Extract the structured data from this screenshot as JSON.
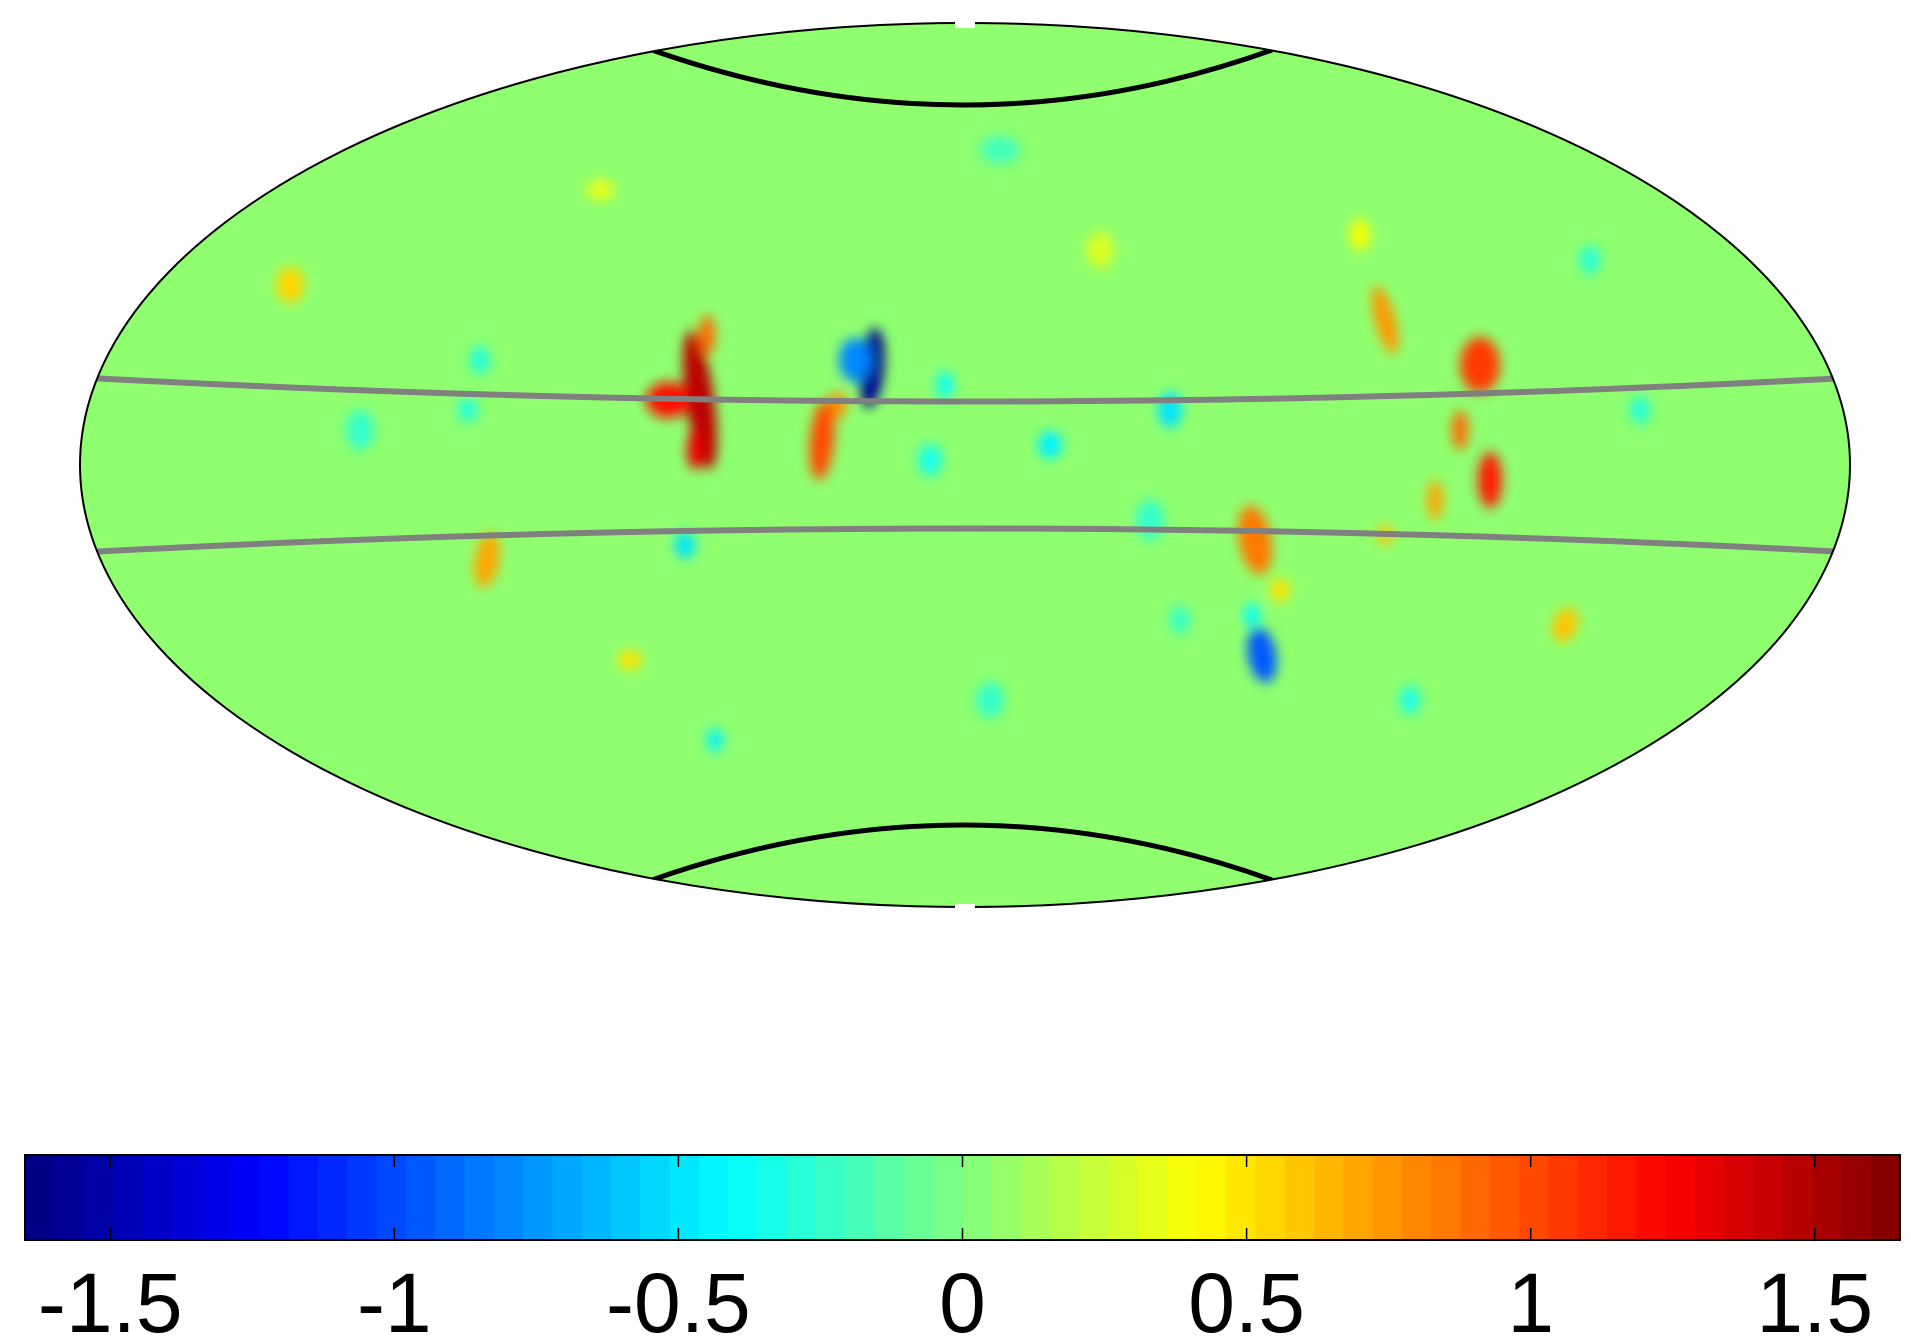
{
  "chart_data": {
    "type": "heatmap",
    "projection": "Hammer-Aitoff all-sky (Mollweide-like ellipse)",
    "title": "",
    "colormap": "jet",
    "colorbar": {
      "orientation": "horizontal",
      "position": "bottom",
      "min": -1.65,
      "max": 1.65,
      "ticks": [
        -1.5,
        -1,
        -0.5,
        0,
        0.5,
        1,
        1.5
      ],
      "tick_labels": [
        "-1.5",
        "-1",
        "-0.5",
        "0",
        "0.5",
        "1",
        "1.5"
      ],
      "n_color_levels": 64
    },
    "overlays": [
      {
        "name": "north-polar-cap-boundary",
        "color": "#000000"
      },
      {
        "name": "south-polar-cap-boundary",
        "color": "#000000"
      },
      {
        "name": "upper-band-boundary",
        "color": "#808080"
      },
      {
        "name": "lower-band-boundary",
        "color": "#808080"
      }
    ],
    "background_level": 0.05,
    "features": [
      {
        "description": "strong positive vertical streak left of center",
        "peak": 1.5
      },
      {
        "description": "strong negative compact spot near center-left",
        "peak": -1.6
      },
      {
        "description": "positive streak near center-left",
        "peak": 1.0
      },
      {
        "description": "positive streak right side",
        "peak": 1.3
      },
      {
        "description": "negative spot lower right of center",
        "peak": -0.9
      }
    ]
  }
}
